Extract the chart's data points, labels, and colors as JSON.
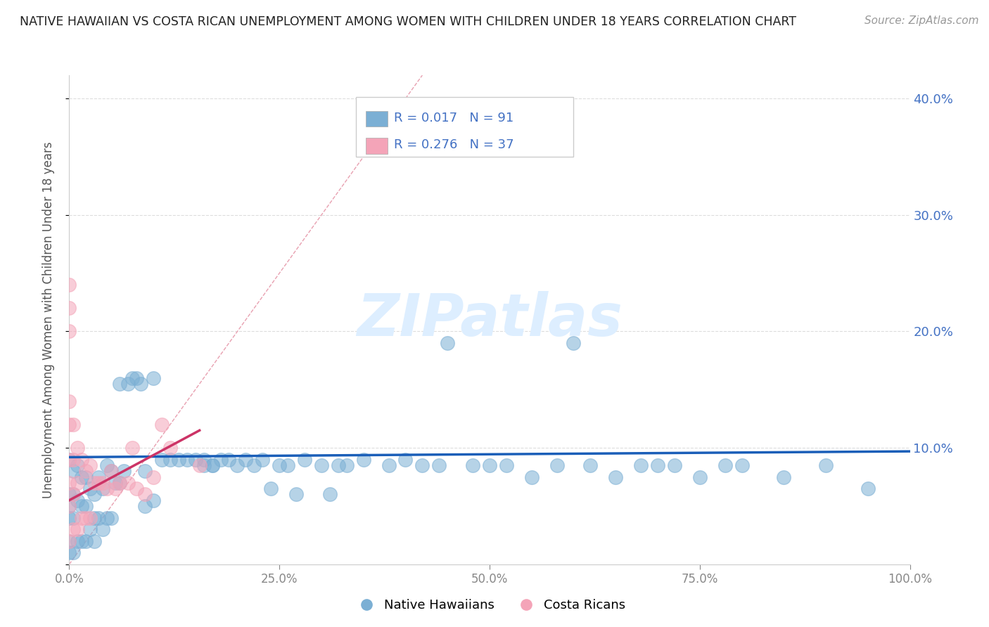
{
  "title": "NATIVE HAWAIIAN VS COSTA RICAN UNEMPLOYMENT AMONG WOMEN WITH CHILDREN UNDER 18 YEARS CORRELATION CHART",
  "source": "Source: ZipAtlas.com",
  "ylabel": "Unemployment Among Women with Children Under 18 years",
  "xlim": [
    0,
    1.0
  ],
  "ylim": [
    0,
    0.42
  ],
  "xticks": [
    0.0,
    0.25,
    0.5,
    0.75,
    1.0
  ],
  "xticklabels": [
    "0.0%",
    "25.0%",
    "50.0%",
    "75.0%",
    "100.0%"
  ],
  "yticks_right": [
    0.1,
    0.2,
    0.3,
    0.4
  ],
  "yticklabels_right": [
    "10.0%",
    "20.0%",
    "30.0%",
    "40.0%"
  ],
  "blue_color": "#7bafd4",
  "pink_color": "#f4a4b8",
  "line_blue": "#1a5eb8",
  "line_pink": "#cc3366",
  "diag_color": "#e8a0b0",
  "background_color": "#ffffff",
  "grid_color": "#dddddd",
  "tick_color": "#4472c4",
  "blue_line_y0": 0.092,
  "blue_line_y1": 0.097,
  "pink_line_x0": 0.0,
  "pink_line_y0": 0.055,
  "pink_line_x1": 0.155,
  "pink_line_y1": 0.115,
  "blue_x": [
    0.0,
    0.0,
    0.0,
    0.0,
    0.0,
    0.0,
    0.005,
    0.005,
    0.005,
    0.005,
    0.01,
    0.01,
    0.01,
    0.015,
    0.015,
    0.015,
    0.02,
    0.02,
    0.02,
    0.025,
    0.025,
    0.03,
    0.03,
    0.03,
    0.035,
    0.035,
    0.04,
    0.04,
    0.045,
    0.045,
    0.05,
    0.05,
    0.055,
    0.06,
    0.06,
    0.065,
    0.07,
    0.075,
    0.08,
    0.085,
    0.09,
    0.09,
    0.1,
    0.1,
    0.11,
    0.12,
    0.13,
    0.14,
    0.15,
    0.16,
    0.16,
    0.17,
    0.17,
    0.18,
    0.19,
    0.2,
    0.21,
    0.22,
    0.23,
    0.24,
    0.25,
    0.26,
    0.27,
    0.28,
    0.3,
    0.31,
    0.32,
    0.33,
    0.35,
    0.38,
    0.4,
    0.42,
    0.44,
    0.45,
    0.48,
    0.5,
    0.52,
    0.55,
    0.58,
    0.6,
    0.62,
    0.65,
    0.68,
    0.7,
    0.72,
    0.75,
    0.78,
    0.8,
    0.85,
    0.9,
    0.95
  ],
  "blue_y": [
    0.09,
    0.06,
    0.05,
    0.04,
    0.02,
    0.01,
    0.08,
    0.06,
    0.04,
    0.01,
    0.085,
    0.055,
    0.02,
    0.075,
    0.05,
    0.02,
    0.075,
    0.05,
    0.02,
    0.065,
    0.03,
    0.06,
    0.04,
    0.02,
    0.075,
    0.04,
    0.065,
    0.03,
    0.085,
    0.04,
    0.08,
    0.04,
    0.07,
    0.155,
    0.07,
    0.08,
    0.155,
    0.16,
    0.16,
    0.155,
    0.08,
    0.05,
    0.16,
    0.055,
    0.09,
    0.09,
    0.09,
    0.09,
    0.09,
    0.085,
    0.09,
    0.085,
    0.085,
    0.09,
    0.09,
    0.085,
    0.09,
    0.085,
    0.09,
    0.065,
    0.085,
    0.085,
    0.06,
    0.09,
    0.085,
    0.06,
    0.085,
    0.085,
    0.09,
    0.085,
    0.09,
    0.085,
    0.085,
    0.19,
    0.085,
    0.085,
    0.085,
    0.075,
    0.085,
    0.19,
    0.085,
    0.075,
    0.085,
    0.085,
    0.085,
    0.075,
    0.085,
    0.085,
    0.075,
    0.085,
    0.065
  ],
  "pink_x": [
    0.0,
    0.0,
    0.0,
    0.0,
    0.0,
    0.0,
    0.0,
    0.0,
    0.0,
    0.005,
    0.005,
    0.005,
    0.005,
    0.01,
    0.01,
    0.01,
    0.015,
    0.015,
    0.02,
    0.02,
    0.025,
    0.025,
    0.03,
    0.035,
    0.04,
    0.045,
    0.05,
    0.055,
    0.06,
    0.07,
    0.075,
    0.08,
    0.09,
    0.1,
    0.11,
    0.12,
    0.155
  ],
  "pink_y": [
    0.24,
    0.22,
    0.2,
    0.14,
    0.12,
    0.09,
    0.07,
    0.05,
    0.02,
    0.12,
    0.09,
    0.06,
    0.03,
    0.1,
    0.07,
    0.03,
    0.09,
    0.04,
    0.08,
    0.04,
    0.085,
    0.04,
    0.07,
    0.07,
    0.07,
    0.065,
    0.08,
    0.065,
    0.07,
    0.07,
    0.1,
    0.065,
    0.06,
    0.075,
    0.12,
    0.1,
    0.085
  ]
}
